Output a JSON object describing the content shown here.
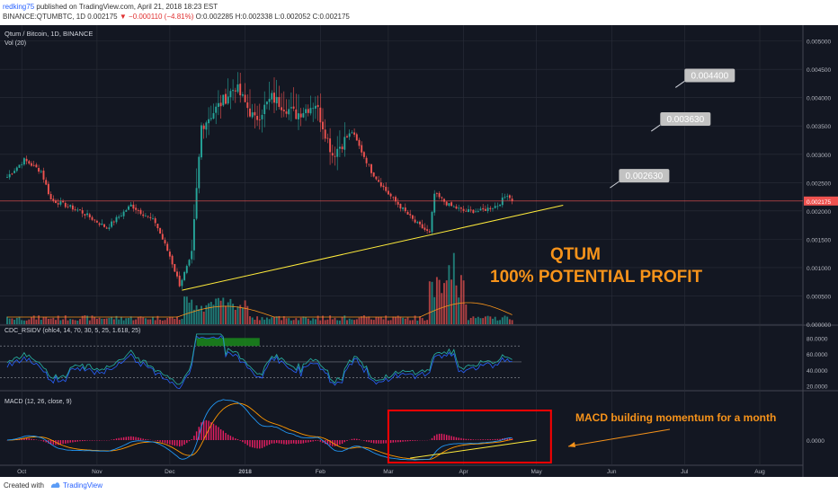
{
  "header": {
    "author": "redking75",
    "published": "published on TradingView.com, April 21, 2018 18:23 EST",
    "symbol": "BINANCE:QTUMBTC, 1D",
    "last": "0.002175",
    "change_arrow": "▼",
    "change": "−0.000110 (−4.81%)",
    "ohlc": "O:0.002285 H:0.002338 L:0.002052 C:0.002175"
  },
  "chart_data": {
    "type": "candlestick",
    "title": "Qtum / Bitcoin, 1D, BINANCE",
    "volume_label": "Vol (20)",
    "current_price": 0.002175,
    "current_price_label": "0.002175",
    "price_axis": {
      "ylim": [
        0.0,
        0.0052
      ],
      "ticks": [
        {
          "v": 0.005,
          "label": "0.005000"
        },
        {
          "v": 0.0045,
          "label": "0.004500"
        },
        {
          "v": 0.004,
          "label": "0.004000"
        },
        {
          "v": 0.0035,
          "label": "0.003500"
        },
        {
          "v": 0.003,
          "label": "0.003000"
        },
        {
          "v": 0.0025,
          "label": "0.002500"
        },
        {
          "v": 0.002,
          "label": "0.002000"
        },
        {
          "v": 0.0015,
          "label": "0.001500"
        },
        {
          "v": 0.001,
          "label": "0.001000"
        },
        {
          "v": 0.0005,
          "label": "0.000500"
        },
        {
          "v": 0.0,
          "label": "0.000000"
        }
      ]
    },
    "time_axis": {
      "labels": [
        "Oct",
        "Nov",
        "Dec",
        "2018",
        "Feb",
        "Mar",
        "Apr",
        "May",
        "Jun",
        "Jul",
        "Aug"
      ],
      "start": "2017-09-25",
      "last_candle": "2018-04-21"
    },
    "anchors": [
      [
        "2017-09-25",
        0.0026
      ],
      [
        "2017-10-02",
        0.0029
      ],
      [
        "2017-10-09",
        0.0027
      ],
      [
        "2017-10-13",
        0.0022
      ],
      [
        "2017-10-25",
        0.002
      ],
      [
        "2017-11-05",
        0.0017
      ],
      [
        "2017-11-15",
        0.0021
      ],
      [
        "2017-11-25",
        0.0018
      ],
      [
        "2017-12-01",
        0.0012
      ],
      [
        "2017-12-05",
        0.0007
      ],
      [
        "2017-12-10",
        0.0012
      ],
      [
        "2017-12-14",
        0.0035
      ],
      [
        "2017-12-20",
        0.0038
      ],
      [
        "2017-12-28",
        0.0042
      ],
      [
        "2018-01-05",
        0.0036
      ],
      [
        "2018-01-12",
        0.004
      ],
      [
        "2018-01-22",
        0.0037
      ],
      [
        "2018-01-30",
        0.0039
      ],
      [
        "2018-02-06",
        0.003
      ],
      [
        "2018-02-14",
        0.0034
      ],
      [
        "2018-02-22",
        0.0027
      ],
      [
        "2018-03-01",
        0.0023
      ],
      [
        "2018-03-12",
        0.0018
      ],
      [
        "2018-03-18",
        0.0016
      ],
      [
        "2018-03-20",
        0.0023
      ],
      [
        "2018-03-26",
        0.0021
      ],
      [
        "2018-04-01",
        0.002
      ],
      [
        "2018-04-08",
        0.002
      ],
      [
        "2018-04-15",
        0.0021
      ],
      [
        "2018-04-19",
        0.0023
      ],
      [
        "2018-04-21",
        0.002175
      ]
    ],
    "trendline": {
      "from": [
        "2017-12-06",
        0.0006
      ],
      "to": [
        "2018-05-12",
        0.0021
      ],
      "color": "#ffeb3b"
    },
    "targets": [
      {
        "label": "0.004400",
        "value": 0.0044,
        "date": "2018-07-01"
      },
      {
        "label": "0.003630",
        "value": 0.00363,
        "date": "2018-06-21"
      },
      {
        "label": "0.002630",
        "value": 0.00263,
        "date": "2018-06-04"
      }
    ],
    "headline": [
      "QTUM",
      "100% POTENTIAL PROFIT"
    ],
    "rsi": {
      "label": "CDC_RSIDV (ohlc4, 14, 70, 30, 5, 25, 1.618, 25)",
      "ylim": [
        15,
        95
      ],
      "levels": [
        70,
        50,
        30
      ],
      "ticks": [
        {
          "v": 80,
          "label": "80.0000"
        },
        {
          "v": 60,
          "label": "60.0000"
        },
        {
          "v": 40,
          "label": "40.0000"
        },
        {
          "v": 20,
          "label": "20.0000"
        }
      ]
    },
    "macd": {
      "label": "MACD (12, 26, close, 9)",
      "ticks": [
        {
          "v": 0,
          "label": "0.0000"
        }
      ],
      "annotation": "MACD building momentum for a month",
      "highlight_box": {
        "from": "2018-03-01",
        "to": "2018-05-07",
        "color": "#ff0000"
      }
    },
    "colors": {
      "up": "#26a69a",
      "down": "#ef5350",
      "background": "#131722",
      "grid": "#2a2e39",
      "headline": "#f7931a",
      "label_box": "#c2c2c2",
      "price_line": "#ef5350"
    }
  },
  "footer": {
    "created_with": "Created with",
    "brand": "TradingView"
  }
}
